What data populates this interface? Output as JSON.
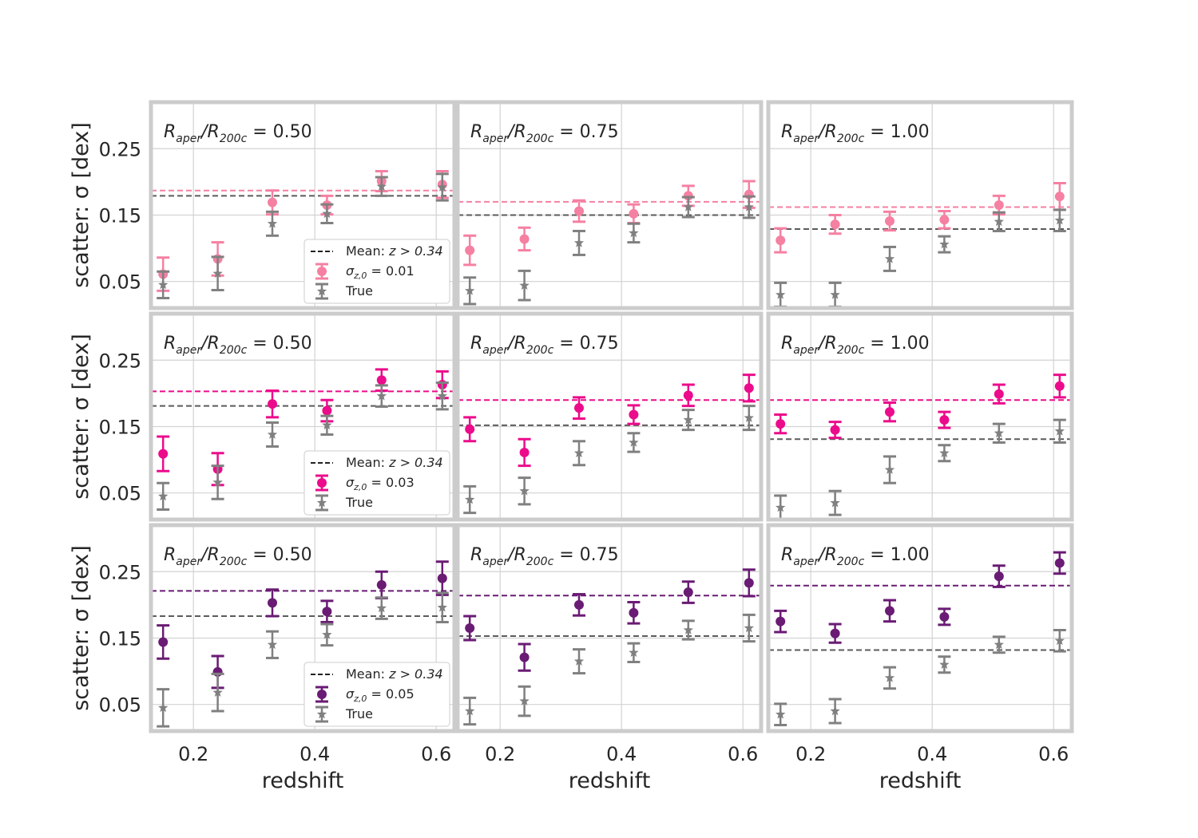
{
  "figure": {
    "ylabel": "scatter: σ [dex]",
    "xlabel": "redshift",
    "panel_title_prefix": "R",
    "panel_title_sub1": "aper",
    "panel_title_mid": "/R",
    "panel_title_sub2": "200c",
    "x_ticks": [
      "0.2",
      "0.4",
      "0.6"
    ],
    "y_ticks": [
      "0.05",
      "0.15",
      "0.25"
    ],
    "mean_line_color": "#5b5b5b",
    "grid": true
  },
  "chart_data": [
    {
      "type": "scatter",
      "row": 0,
      "col": 0,
      "title_value": "0.50",
      "xlim": [
        0.13,
        0.63
      ],
      "ylim": [
        0.01,
        0.32
      ],
      "x_ticks": [
        0.2,
        0.4,
        0.6
      ],
      "y_ticks": [
        0.05,
        0.15,
        0.25
      ],
      "series": [
        {
          "name": "σz,0 = 0.01",
          "color": "#f580a2",
          "marker": "circle",
          "x": [
            0.15,
            0.24,
            0.33,
            0.42,
            0.51,
            0.61
          ],
          "y": [
            0.061,
            0.084,
            0.169,
            0.165,
            0.201,
            0.196
          ],
          "yerr": [
            0.025,
            0.025,
            0.018,
            0.014,
            0.015,
            0.02
          ],
          "mean": 0.187
        },
        {
          "name": "True",
          "color": "#808080",
          "marker": "star",
          "x": [
            0.15,
            0.24,
            0.33,
            0.42,
            0.51,
            0.61
          ],
          "y": [
            0.045,
            0.062,
            0.137,
            0.152,
            0.193,
            0.192
          ],
          "yerr": [
            0.02,
            0.025,
            0.018,
            0.014,
            0.014,
            0.02
          ],
          "mean": 0.179
        }
      ],
      "legend": {
        "mean_label": "Mean: ",
        "mean_math": "z > 0.34",
        "sigma_value": "0.01",
        "true_label": "True"
      }
    },
    {
      "type": "scatter",
      "row": 0,
      "col": 1,
      "title_value": "0.75",
      "xlim": [
        0.13,
        0.63
      ],
      "ylim": [
        0.01,
        0.32
      ],
      "x_ticks": [
        0.2,
        0.4,
        0.6
      ],
      "y_ticks": [
        0.05,
        0.15,
        0.25
      ],
      "series": [
        {
          "name": "σz,0 = 0.01",
          "color": "#f580a2",
          "marker": "circle",
          "x": [
            0.15,
            0.24,
            0.33,
            0.42,
            0.51,
            0.61
          ],
          "y": [
            0.097,
            0.114,
            0.156,
            0.152,
            0.179,
            0.181
          ],
          "yerr": [
            0.022,
            0.017,
            0.016,
            0.014,
            0.015,
            0.02
          ],
          "mean": 0.17
        },
        {
          "name": "True",
          "color": "#808080",
          "marker": "star",
          "x": [
            0.15,
            0.24,
            0.33,
            0.42,
            0.51,
            0.61
          ],
          "y": [
            0.036,
            0.044,
            0.108,
            0.123,
            0.162,
            0.162
          ],
          "yerr": [
            0.02,
            0.022,
            0.018,
            0.014,
            0.015,
            0.016
          ],
          "mean": 0.15
        }
      ]
    },
    {
      "type": "scatter",
      "row": 0,
      "col": 2,
      "title_value": "1.00",
      "xlim": [
        0.13,
        0.63
      ],
      "ylim": [
        0.01,
        0.32
      ],
      "x_ticks": [
        0.2,
        0.4,
        0.6
      ],
      "y_ticks": [
        0.05,
        0.15,
        0.25
      ],
      "series": [
        {
          "name": "σz,0 = 0.01",
          "color": "#f580a2",
          "marker": "circle",
          "x": [
            0.15,
            0.24,
            0.33,
            0.42,
            0.51,
            0.61
          ],
          "y": [
            0.112,
            0.136,
            0.141,
            0.143,
            0.165,
            0.178
          ],
          "yerr": [
            0.018,
            0.014,
            0.014,
            0.013,
            0.014,
            0.02
          ],
          "mean": 0.162
        },
        {
          "name": "True",
          "color": "#808080",
          "marker": "star",
          "x": [
            0.15,
            0.24,
            0.33,
            0.42,
            0.51,
            0.61
          ],
          "y": [
            0.03,
            0.03,
            0.084,
            0.106,
            0.14,
            0.142
          ],
          "yerr": [
            0.018,
            0.018,
            0.018,
            0.012,
            0.014,
            0.016
          ],
          "mean": 0.129
        }
      ]
    },
    {
      "type": "scatter",
      "row": 1,
      "col": 0,
      "title_value": "0.50",
      "xlim": [
        0.13,
        0.63
      ],
      "ylim": [
        0.01,
        0.32
      ],
      "x_ticks": [
        0.2,
        0.4,
        0.6
      ],
      "y_ticks": [
        0.05,
        0.15,
        0.25
      ],
      "series": [
        {
          "name": "σz,0 = 0.03",
          "color": "#ec0b8b",
          "marker": "circle",
          "x": [
            0.15,
            0.24,
            0.33,
            0.42,
            0.51,
            0.61
          ],
          "y": [
            0.109,
            0.086,
            0.184,
            0.174,
            0.22,
            0.213
          ],
          "yerr": [
            0.026,
            0.024,
            0.02,
            0.016,
            0.016,
            0.02
          ],
          "mean": 0.203
        },
        {
          "name": "True",
          "color": "#808080",
          "marker": "star",
          "x": [
            0.15,
            0.24,
            0.33,
            0.42,
            0.51,
            0.61
          ],
          "y": [
            0.045,
            0.066,
            0.138,
            0.152,
            0.196,
            0.196
          ],
          "yerr": [
            0.02,
            0.025,
            0.018,
            0.014,
            0.016,
            0.02
          ],
          "mean": 0.181
        }
      ],
      "legend": {
        "mean_label": "Mean: ",
        "mean_math": "z > 0.34",
        "sigma_value": "0.03",
        "true_label": "True"
      }
    },
    {
      "type": "scatter",
      "row": 1,
      "col": 1,
      "title_value": "0.75",
      "xlim": [
        0.13,
        0.63
      ],
      "ylim": [
        0.01,
        0.32
      ],
      "x_ticks": [
        0.2,
        0.4,
        0.6
      ],
      "y_ticks": [
        0.05,
        0.15,
        0.25
      ],
      "series": [
        {
          "name": "σz,0 = 0.03",
          "color": "#ec0b8b",
          "marker": "circle",
          "x": [
            0.15,
            0.24,
            0.33,
            0.42,
            0.51,
            0.61
          ],
          "y": [
            0.146,
            0.111,
            0.178,
            0.168,
            0.197,
            0.208
          ],
          "yerr": [
            0.018,
            0.02,
            0.016,
            0.014,
            0.016,
            0.02
          ],
          "mean": 0.19
        },
        {
          "name": "True",
          "color": "#808080",
          "marker": "star",
          "x": [
            0.15,
            0.24,
            0.33,
            0.42,
            0.51,
            0.61
          ],
          "y": [
            0.04,
            0.053,
            0.11,
            0.126,
            0.16,
            0.163
          ],
          "yerr": [
            0.02,
            0.02,
            0.018,
            0.014,
            0.015,
            0.018
          ],
          "mean": 0.152
        }
      ]
    },
    {
      "type": "scatter",
      "row": 1,
      "col": 2,
      "title_value": "1.00",
      "xlim": [
        0.13,
        0.63
      ],
      "ylim": [
        0.01,
        0.32
      ],
      "x_ticks": [
        0.2,
        0.4,
        0.6
      ],
      "y_ticks": [
        0.05,
        0.15,
        0.25
      ],
      "series": [
        {
          "name": "σz,0 = 0.03",
          "color": "#ec0b8b",
          "marker": "circle",
          "x": [
            0.15,
            0.24,
            0.33,
            0.42,
            0.51,
            0.61
          ],
          "y": [
            0.154,
            0.145,
            0.172,
            0.16,
            0.199,
            0.211
          ],
          "yerr": [
            0.014,
            0.012,
            0.014,
            0.012,
            0.014,
            0.017
          ],
          "mean": 0.19
        },
        {
          "name": "True",
          "color": "#808080",
          "marker": "star",
          "x": [
            0.15,
            0.24,
            0.33,
            0.42,
            0.51,
            0.61
          ],
          "y": [
            0.028,
            0.035,
            0.085,
            0.11,
            0.14,
            0.143
          ],
          "yerr": [
            0.018,
            0.018,
            0.02,
            0.012,
            0.014,
            0.017
          ],
          "mean": 0.131
        }
      ]
    },
    {
      "type": "scatter",
      "row": 2,
      "col": 0,
      "title_value": "0.50",
      "xlim": [
        0.13,
        0.63
      ],
      "ylim": [
        0.01,
        0.32
      ],
      "x_ticks": [
        0.2,
        0.4,
        0.6
      ],
      "y_ticks": [
        0.05,
        0.15,
        0.25
      ],
      "series": [
        {
          "name": "σz,0 = 0.05",
          "color": "#6a1b74",
          "marker": "circle",
          "x": [
            0.15,
            0.24,
            0.33,
            0.42,
            0.51,
            0.61
          ],
          "y": [
            0.144,
            0.099,
            0.203,
            0.19,
            0.23,
            0.24
          ],
          "yerr": [
            0.025,
            0.024,
            0.02,
            0.016,
            0.02,
            0.025
          ],
          "mean": 0.221
        },
        {
          "name": "True",
          "color": "#808080",
          "marker": "star",
          "x": [
            0.15,
            0.24,
            0.33,
            0.42,
            0.51,
            0.61
          ],
          "y": [
            0.045,
            0.068,
            0.14,
            0.155,
            0.195,
            0.196
          ],
          "yerr": [
            0.028,
            0.028,
            0.02,
            0.016,
            0.016,
            0.022
          ],
          "mean": 0.183
        }
      ],
      "legend": {
        "mean_label": "Mean: ",
        "mean_math": "z > 0.34",
        "sigma_value": "0.05",
        "true_label": "True"
      }
    },
    {
      "type": "scatter",
      "row": 2,
      "col": 1,
      "title_value": "0.75",
      "xlim": [
        0.13,
        0.63
      ],
      "ylim": [
        0.01,
        0.32
      ],
      "x_ticks": [
        0.2,
        0.4,
        0.6
      ],
      "y_ticks": [
        0.05,
        0.15,
        0.25
      ],
      "series": [
        {
          "name": "σz,0 = 0.05",
          "color": "#6a1b74",
          "marker": "circle",
          "x": [
            0.15,
            0.24,
            0.33,
            0.42,
            0.51,
            0.61
          ],
          "y": [
            0.165,
            0.121,
            0.2,
            0.188,
            0.219,
            0.233
          ],
          "yerr": [
            0.018,
            0.02,
            0.016,
            0.016,
            0.016,
            0.02
          ],
          "mean": 0.214
        },
        {
          "name": "True",
          "color": "#808080",
          "marker": "star",
          "x": [
            0.15,
            0.24,
            0.33,
            0.42,
            0.51,
            0.61
          ],
          "y": [
            0.04,
            0.055,
            0.115,
            0.128,
            0.162,
            0.165
          ],
          "yerr": [
            0.02,
            0.022,
            0.018,
            0.014,
            0.014,
            0.02
          ],
          "mean": 0.153
        }
      ]
    },
    {
      "type": "scatter",
      "row": 2,
      "col": 2,
      "title_value": "1.00",
      "xlim": [
        0.13,
        0.63
      ],
      "ylim": [
        0.01,
        0.32
      ],
      "x_ticks": [
        0.2,
        0.4,
        0.6
      ],
      "y_ticks": [
        0.05,
        0.15,
        0.25
      ],
      "series": [
        {
          "name": "σz,0 = 0.05",
          "color": "#6a1b74",
          "marker": "circle",
          "x": [
            0.15,
            0.24,
            0.33,
            0.42,
            0.51,
            0.61
          ],
          "y": [
            0.175,
            0.157,
            0.191,
            0.182,
            0.243,
            0.263
          ],
          "yerr": [
            0.016,
            0.014,
            0.016,
            0.012,
            0.016,
            0.016
          ],
          "mean": 0.229
        },
        {
          "name": "True",
          "color": "#808080",
          "marker": "star",
          "x": [
            0.15,
            0.24,
            0.33,
            0.42,
            0.51,
            0.61
          ],
          "y": [
            0.035,
            0.04,
            0.09,
            0.11,
            0.14,
            0.146
          ],
          "yerr": [
            0.016,
            0.018,
            0.016,
            0.012,
            0.012,
            0.016
          ],
          "mean": 0.132
        }
      ]
    }
  ]
}
